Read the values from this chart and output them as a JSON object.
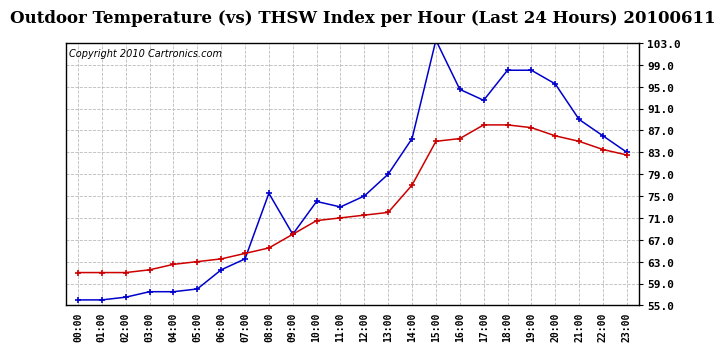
{
  "title": "Outdoor Temperature (vs) THSW Index per Hour (Last 24 Hours) 20100611",
  "copyright": "Copyright 2010 Cartronics.com",
  "hours": [
    0,
    1,
    2,
    3,
    4,
    5,
    6,
    7,
    8,
    9,
    10,
    11,
    12,
    13,
    14,
    15,
    16,
    17,
    18,
    19,
    20,
    21,
    22,
    23
  ],
  "temp_red": [
    61.0,
    61.0,
    61.0,
    61.5,
    62.5,
    63.0,
    63.5,
    64.5,
    65.5,
    68.0,
    70.5,
    71.0,
    71.5,
    72.0,
    77.0,
    85.0,
    85.5,
    88.0,
    88.0,
    87.5,
    86.0,
    85.0,
    83.5,
    82.5
  ],
  "thsw_blue": [
    56.0,
    56.0,
    56.5,
    57.5,
    57.5,
    58.0,
    61.5,
    63.5,
    75.5,
    68.0,
    74.0,
    73.0,
    75.0,
    79.0,
    85.5,
    103.5,
    94.5,
    92.5,
    98.0,
    98.0,
    95.5,
    89.0,
    86.0,
    83.0
  ],
  "ylim": [
    55.0,
    103.0
  ],
  "yticks": [
    55.0,
    59.0,
    63.0,
    67.0,
    71.0,
    75.0,
    79.0,
    83.0,
    87.0,
    91.0,
    95.0,
    99.0,
    103.0
  ],
  "grid_color": "#bbbbbb",
  "bg_color": "#ffffff",
  "plot_bg_color": "#ffffff",
  "red_color": "#cc0000",
  "blue_color": "#0000cc",
  "title_fontsize": 12,
  "copyright_fontsize": 7
}
